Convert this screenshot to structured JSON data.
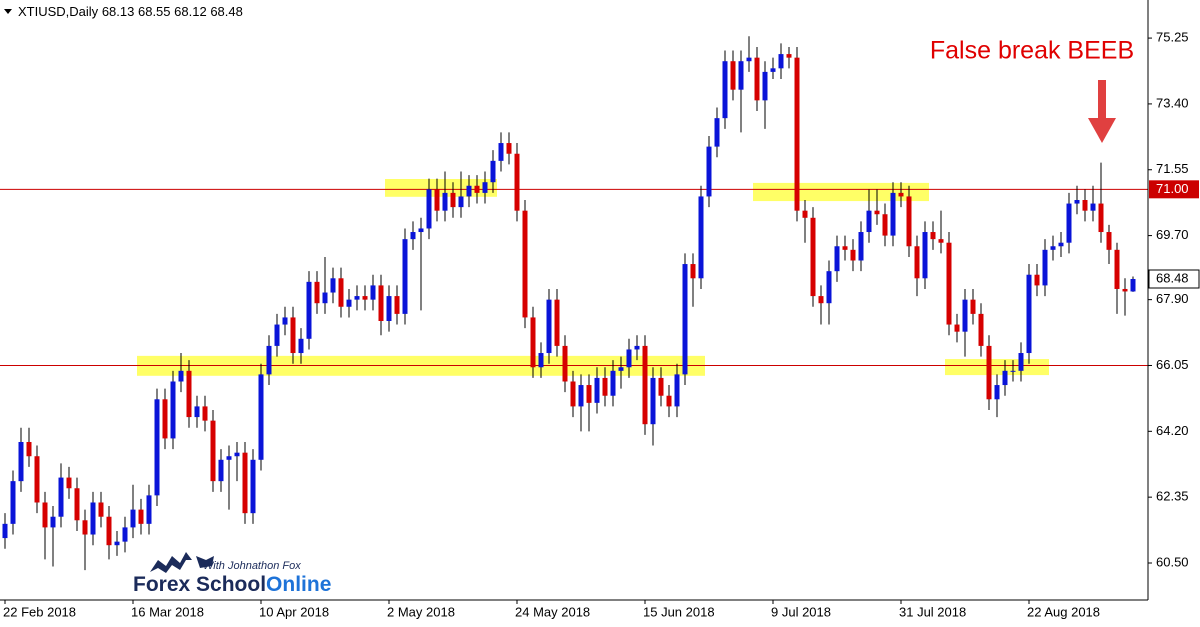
{
  "chart_data": {
    "type": "candlestick",
    "title": "XTIUSD,Daily",
    "annotation": "False break BEEB",
    "up_color": "#0a14d8",
    "down_color": "#d60000",
    "wick_color": "#000000",
    "zone_color": "#ffff66",
    "hline_color": "#cc0000",
    "grid": false,
    "categories": [
      "22 Feb 2018",
      null,
      null,
      null,
      null,
      null,
      null,
      null,
      null,
      null,
      null,
      null,
      null,
      null,
      null,
      null,
      "16 Mar 2018",
      null,
      null,
      null,
      null,
      null,
      null,
      null,
      null,
      null,
      null,
      null,
      null,
      null,
      null,
      null,
      "10 Apr 2018",
      null,
      null,
      null,
      null,
      null,
      null,
      null,
      null,
      null,
      null,
      null,
      null,
      null,
      null,
      null,
      "2 May 2018",
      null,
      null,
      null,
      null,
      null,
      null,
      null,
      null,
      null,
      null,
      null,
      null,
      null,
      null,
      null,
      "24 May 2018",
      null,
      null,
      null,
      null,
      null,
      null,
      null,
      null,
      null,
      null,
      null,
      null,
      null,
      null,
      null,
      "15 Jun 2018",
      null,
      null,
      null,
      null,
      null,
      null,
      null,
      null,
      null,
      null,
      null,
      null,
      null,
      null,
      null,
      "9 Jul 2018",
      null,
      null,
      null,
      null,
      null,
      null,
      null,
      null,
      null,
      null,
      null,
      null,
      null,
      null,
      null,
      "31 Jul 2018",
      null,
      null,
      null,
      null,
      null,
      null,
      null,
      null,
      null,
      null,
      null,
      null,
      null,
      null,
      null,
      "22 Aug 2018",
      null,
      null,
      null,
      null,
      null,
      null,
      null,
      null,
      null,
      null,
      null,
      null,
      null
    ],
    "open": [
      61.2,
      61.6,
      62.8,
      63.9,
      63.5,
      62.2,
      61.5,
      61.8,
      62.9,
      62.6,
      61.7,
      61.3,
      62.2,
      61.8,
      61.0,
      61.1,
      61.5,
      62.0,
      61.6,
      62.4,
      65.1,
      64.0,
      65.6,
      65.9,
      64.6,
      64.9,
      64.5,
      62.8,
      63.4,
      63.5,
      63.6,
      61.9,
      63.4,
      65.8,
      66.6,
      67.2,
      67.4,
      66.4,
      66.8,
      68.4,
      67.8,
      68.1,
      68.5,
      67.7,
      67.9,
      68.0,
      67.9,
      68.3,
      67.3,
      68.0,
      67.5,
      69.6,
      69.8,
      69.9,
      71.0,
      70.4,
      70.9,
      70.5,
      70.8,
      71.1,
      70.9,
      71.2,
      71.8,
      72.3,
      72.0,
      70.4,
      67.4,
      66.0,
      66.4,
      67.9,
      66.6,
      65.6,
      64.9,
      65.5,
      65.0,
      65.7,
      65.2,
      65.9,
      66.0,
      66.5,
      66.6,
      64.4,
      65.7,
      65.2,
      64.9,
      65.8,
      68.9,
      68.5,
      70.8,
      72.2,
      73.0,
      74.6,
      73.8,
      74.6,
      74.7,
      73.5,
      74.3,
      74.4,
      74.8,
      74.7,
      70.4,
      70.2,
      68.0,
      67.8,
      68.7,
      69.4,
      69.3,
      69.0,
      69.8,
      70.4,
      70.3,
      69.7,
      70.9,
      70.8,
      69.4,
      68.5,
      69.8,
      69.6,
      69.5,
      67.2,
      67.0,
      67.9,
      67.5,
      66.6,
      65.1,
      65.5,
      65.9,
      65.9,
      66.4,
      68.6,
      68.3,
      69.3,
      69.4,
      69.5,
      70.6,
      70.7,
      70.4,
      70.6,
      69.8,
      69.3,
      68.2,
      68.13
    ],
    "high": [
      61.9,
      63.1,
      64.3,
      64.3,
      63.8,
      62.5,
      62.1,
      63.3,
      63.2,
      62.9,
      62.0,
      62.5,
      62.5,
      62.1,
      61.4,
      61.8,
      62.7,
      62.3,
      62.7,
      65.4,
      65.4,
      65.9,
      66.4,
      66.2,
      65.2,
      65.2,
      64.8,
      63.7,
      63.8,
      63.9,
      63.9,
      63.7,
      66.1,
      66.9,
      67.5,
      67.7,
      67.7,
      67.1,
      68.7,
      68.7,
      69.1,
      68.8,
      68.8,
      68.2,
      68.3,
      68.3,
      68.6,
      68.6,
      68.3,
      68.3,
      69.9,
      70.1,
      70.2,
      71.3,
      71.3,
      71.5,
      71.2,
      71.5,
      71.4,
      71.4,
      71.5,
      72.1,
      72.6,
      72.6,
      72.3,
      70.7,
      67.7,
      66.7,
      68.2,
      68.2,
      66.9,
      65.9,
      65.8,
      65.8,
      66.0,
      66.0,
      66.2,
      66.3,
      66.8,
      66.9,
      66.9,
      66.0,
      66.0,
      65.5,
      66.1,
      69.2,
      69.2,
      71.1,
      72.5,
      73.3,
      74.9,
      74.9,
      74.9,
      75.3,
      75.0,
      74.6,
      74.7,
      75.1,
      75.0,
      75.0,
      70.7,
      70.5,
      68.3,
      69.0,
      69.7,
      69.7,
      69.6,
      70.1,
      71.0,
      71.0,
      70.6,
      71.2,
      71.2,
      71.1,
      69.7,
      70.1,
      70.1,
      70.4,
      69.8,
      67.5,
      68.2,
      68.2,
      67.8,
      66.9,
      65.8,
      66.2,
      66.2,
      66.7,
      68.9,
      68.9,
      69.6,
      69.7,
      69.8,
      70.9,
      71.1,
      71.0,
      71.1,
      71.75,
      70.0,
      69.5,
      68.5,
      68.55
    ],
    "low": [
      60.9,
      61.3,
      62.5,
      63.2,
      61.9,
      60.6,
      60.4,
      61.5,
      62.3,
      61.4,
      60.3,
      61.0,
      61.5,
      60.6,
      60.7,
      60.8,
      61.2,
      61.3,
      61.3,
      62.1,
      63.7,
      63.7,
      65.3,
      64.3,
      64.3,
      64.2,
      62.5,
      62.5,
      62.0,
      62.8,
      61.6,
      61.6,
      63.1,
      65.5,
      66.3,
      66.9,
      66.1,
      66.1,
      66.5,
      67.5,
      67.5,
      67.8,
      67.4,
      67.4,
      67.6,
      67.6,
      67.6,
      66.9,
      67.0,
      67.2,
      67.2,
      69.3,
      67.6,
      69.6,
      70.1,
      70.1,
      70.2,
      70.2,
      70.5,
      70.6,
      70.6,
      70.9,
      71.5,
      71.7,
      70.1,
      67.1,
      65.7,
      65.7,
      66.1,
      66.3,
      65.3,
      64.6,
      64.2,
      64.2,
      64.7,
      64.9,
      64.9,
      65.4,
      65.7,
      66.2,
      64.1,
      63.8,
      64.9,
      64.6,
      64.6,
      65.5,
      67.7,
      68.2,
      70.5,
      71.9,
      72.7,
      73.5,
      72.6,
      74.3,
      73.2,
      72.7,
      74.1,
      74.1,
      74.4,
      70.1,
      69.5,
      67.7,
      67.2,
      67.2,
      68.4,
      69.0,
      68.7,
      68.7,
      69.5,
      70.0,
      69.4,
      69.4,
      70.5,
      69.1,
      68.0,
      68.2,
      69.3,
      69.2,
      66.9,
      66.7,
      66.3,
      67.2,
      66.3,
      64.8,
      64.6,
      65.2,
      65.6,
      65.6,
      66.1,
      68.0,
      68.0,
      69.0,
      69.1,
      69.2,
      70.3,
      70.1,
      70.1,
      69.5,
      68.9,
      67.5,
      67.45,
      68.12
    ],
    "close": [
      61.6,
      62.8,
      63.9,
      63.5,
      62.2,
      61.5,
      61.8,
      62.9,
      62.6,
      61.7,
      61.3,
      62.2,
      61.8,
      61.0,
      61.1,
      61.5,
      62.0,
      61.6,
      62.4,
      65.1,
      64.0,
      65.6,
      65.9,
      64.6,
      64.9,
      64.5,
      62.8,
      63.4,
      63.5,
      63.6,
      61.9,
      63.4,
      65.8,
      66.6,
      67.2,
      67.4,
      66.4,
      66.8,
      68.4,
      67.8,
      68.1,
      68.5,
      67.7,
      67.9,
      68.0,
      67.9,
      68.3,
      67.3,
      68.0,
      67.5,
      69.6,
      69.8,
      69.9,
      71.0,
      70.4,
      70.9,
      70.5,
      70.8,
      71.1,
      70.9,
      71.2,
      71.8,
      72.3,
      72.0,
      70.4,
      67.4,
      66.0,
      66.4,
      67.9,
      66.6,
      65.6,
      64.9,
      65.5,
      65.0,
      65.7,
      65.2,
      65.9,
      66.0,
      66.5,
      66.6,
      64.4,
      65.7,
      65.2,
      64.9,
      65.8,
      68.9,
      68.5,
      70.8,
      72.2,
      73.0,
      74.6,
      73.8,
      74.6,
      74.7,
      73.5,
      74.3,
      74.4,
      74.8,
      74.7,
      70.4,
      70.2,
      68.0,
      67.8,
      68.7,
      69.4,
      69.3,
      69.0,
      69.8,
      70.4,
      70.3,
      69.7,
      70.9,
      70.8,
      69.4,
      68.5,
      69.8,
      69.6,
      69.5,
      67.2,
      67.0,
      67.9,
      67.5,
      66.6,
      65.1,
      65.5,
      65.9,
      65.9,
      66.4,
      68.6,
      68.3,
      69.3,
      69.4,
      69.5,
      70.6,
      70.7,
      70.4,
      70.6,
      69.8,
      69.3,
      68.2,
      68.13,
      68.48
    ],
    "ylim": [
      59.46,
      76.32
    ],
    "yticks": [
      {
        "value": 60.5,
        "label": "60.50"
      },
      62.35,
      {
        "value": 64.2,
        "label": "64.20"
      },
      66.05,
      {
        "value": 67.9,
        "label": "67.90"
      },
      {
        "value": 69.7,
        "label": "69.70"
      },
      71.55,
      {
        "value": 73.4,
        "label": "73.40"
      },
      75.25
    ],
    "hlines": [
      {
        "value": 71,
        "label": "71.00"
      },
      66.05
    ],
    "zones": [
      {
        "x": [
          48,
          61
        ],
        "y": [
          70.79,
          71.29
        ]
      },
      {
        "x": [
          17,
          87
        ],
        "y": [
          65.76,
          66.32
        ]
      },
      {
        "x": [
          94,
          115
        ],
        "y": [
          70.67,
          71.18
        ]
      },
      {
        "x": [
          118,
          130
        ],
        "y": [
          65.78,
          66.23
        ]
      }
    ],
    "watermark": {
      "tagline": "With Johnathon Fox",
      "brand": "Forex School",
      "brand_accent": "Online"
    }
  }
}
